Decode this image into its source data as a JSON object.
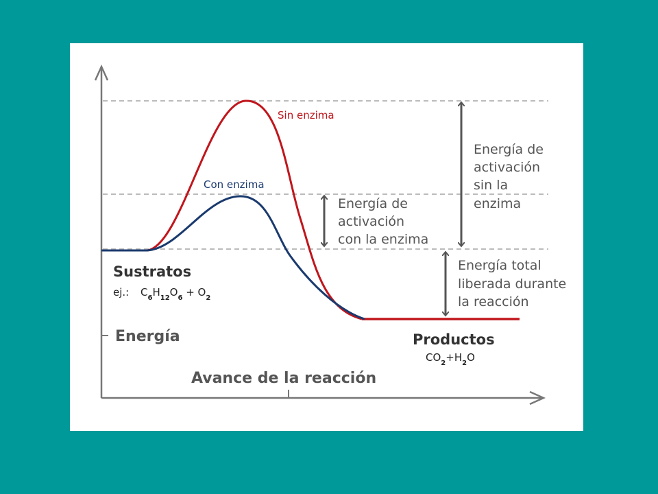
{
  "diagram": {
    "curve_without_enzyme_label": "Sin enzima",
    "curve_with_enzyme_label": "Con enzima",
    "activation_without_enzyme": [
      "Energía de",
      "activación",
      "sin la",
      "enzima"
    ],
    "activation_with_enzyme": [
      "Energía de",
      "activación",
      "con la enzima"
    ],
    "total_energy_released": [
      "Energía total",
      "liberada durante",
      "la reacción"
    ],
    "substrates": {
      "label": "Sustratos",
      "example_prefix": "ej.:",
      "formula": [
        {
          "t": "C"
        },
        {
          "t": "6",
          "sub": true
        },
        {
          "t": "H"
        },
        {
          "t": "12",
          "sub": true
        },
        {
          "t": "O"
        },
        {
          "t": "6",
          "sub": true
        },
        {
          "t": " + O"
        },
        {
          "t": "2",
          "sub": true
        }
      ]
    },
    "y_axis_label": "Energía",
    "products": {
      "label": "Productos",
      "formula": [
        {
          "t": "CO"
        },
        {
          "t": "2",
          "sub": true
        },
        {
          "t": "+H"
        },
        {
          "t": "2",
          "sub": true
        },
        {
          "t": "O"
        }
      ]
    },
    "x_axis_label": "Avance de la reacción"
  },
  "colors": {
    "slide_background": "#009999",
    "panel_background": "#ffffff",
    "curve_without_enzyme": "#c0161c",
    "curve_with_enzyme": "#1a3a6e",
    "axes": "#777777",
    "guides": "#bbbbbb",
    "annotations": "#555555"
  }
}
